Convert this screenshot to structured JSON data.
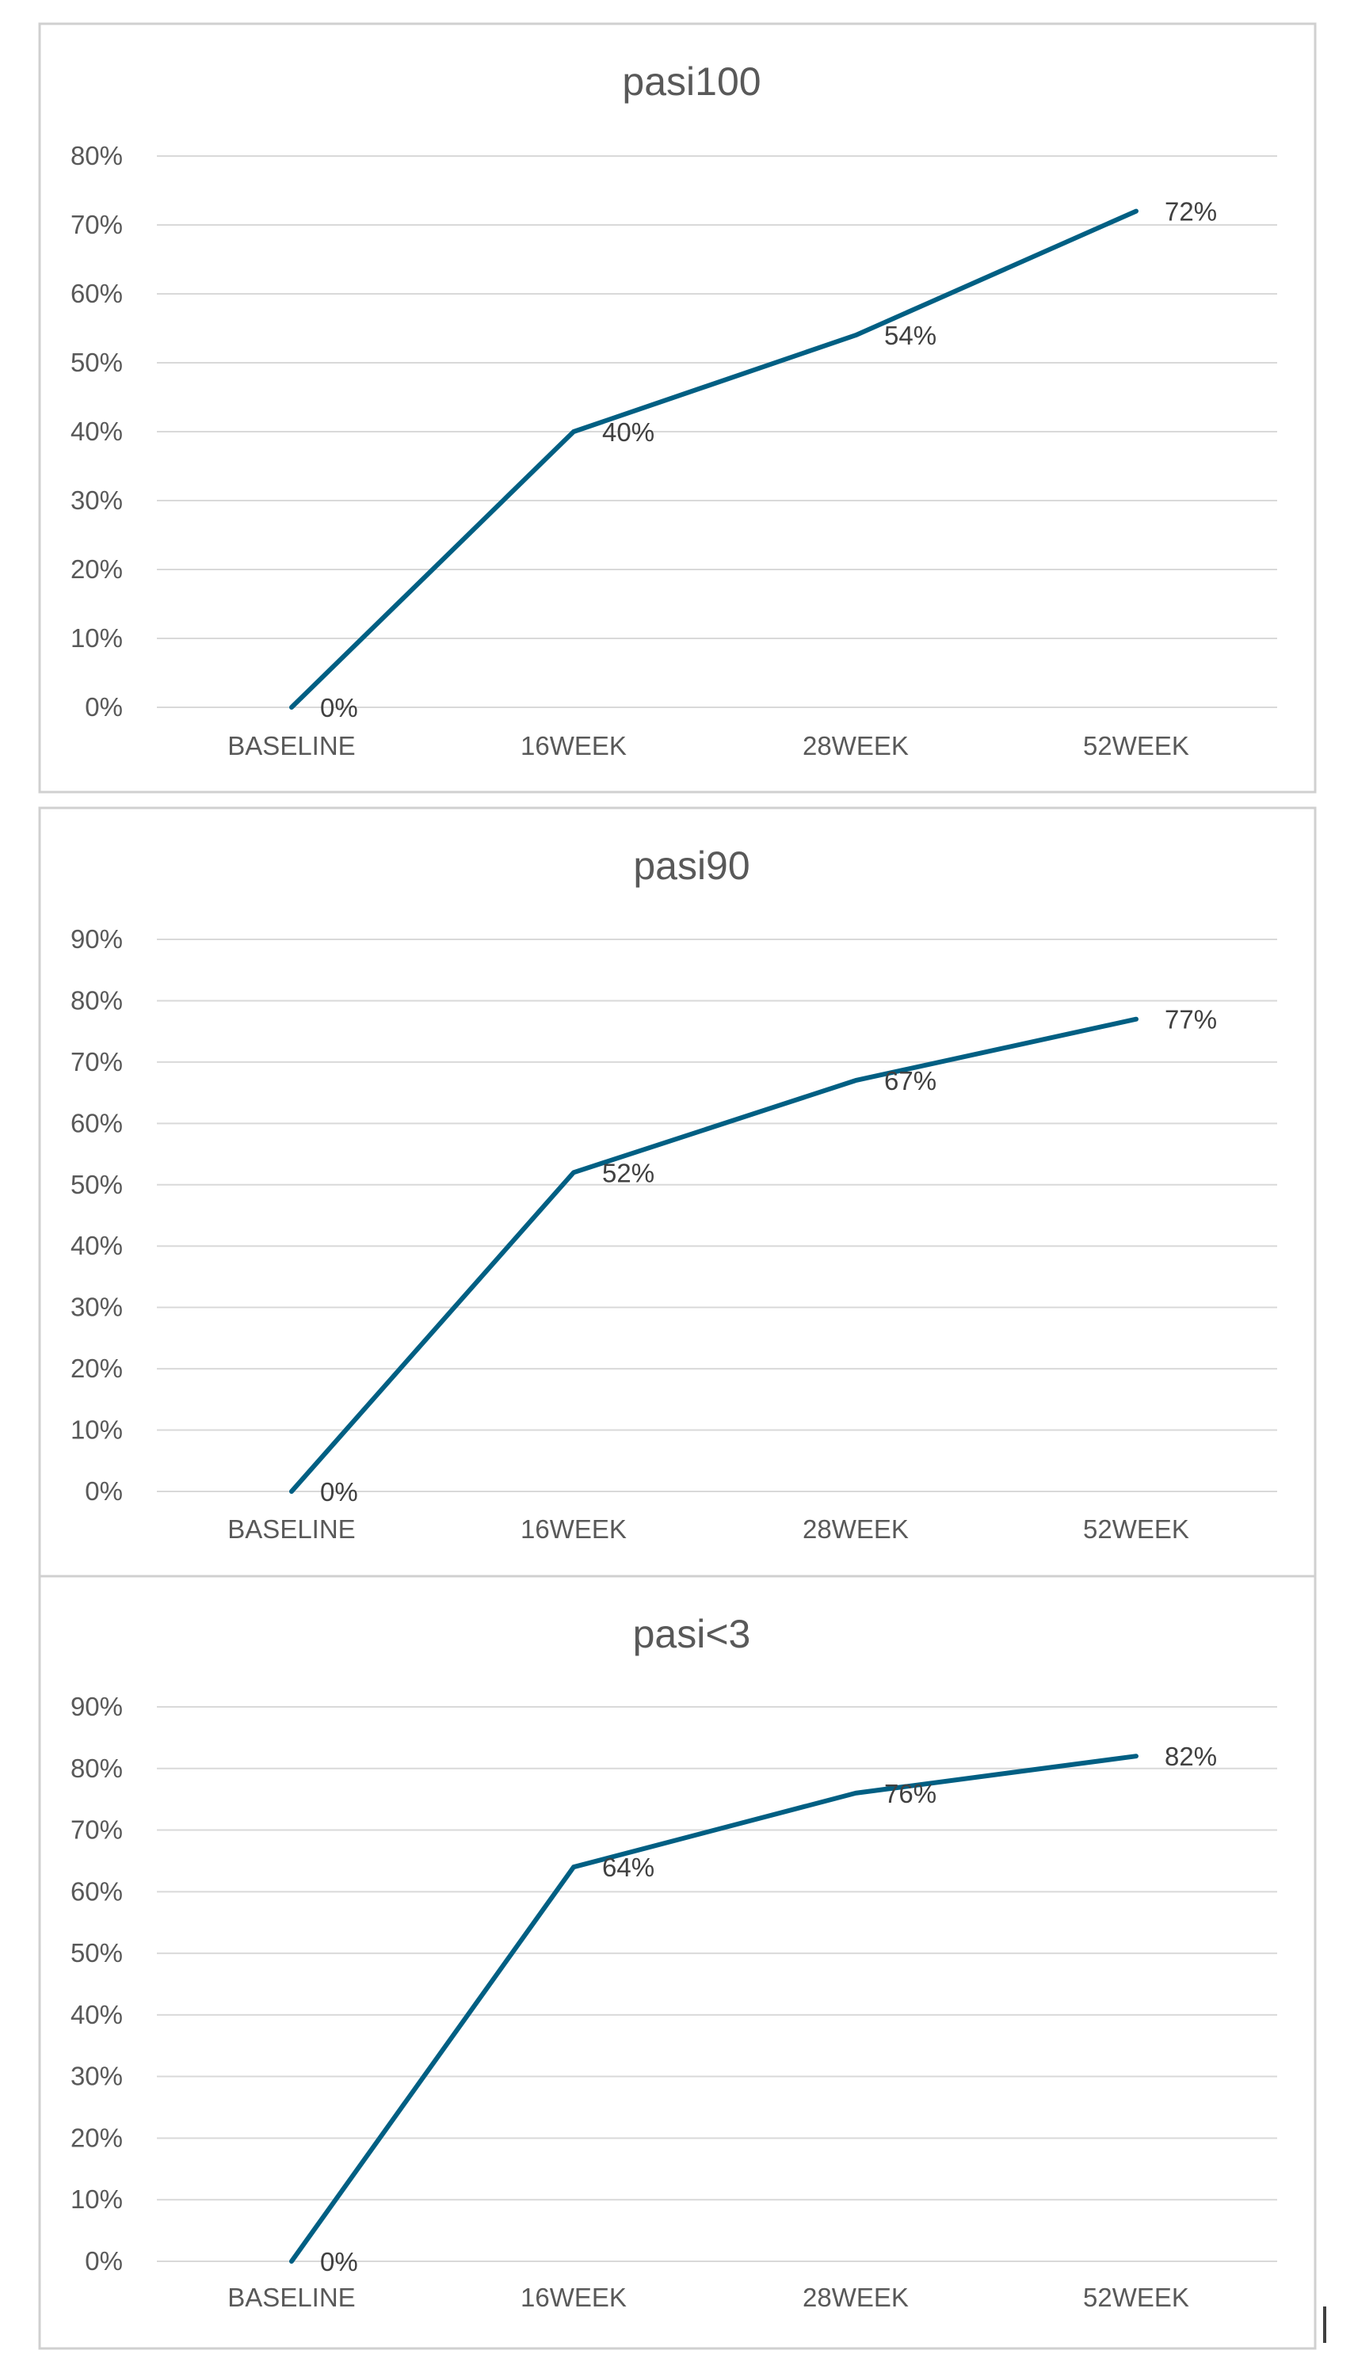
{
  "chart_data": [
    {
      "type": "line",
      "title": "pasi100",
      "categories": [
        "BASELINE",
        "16WEEK",
        "28WEEK",
        "52WEEK"
      ],
      "values": [
        0,
        40,
        54,
        72
      ],
      "data_labels": [
        "0%",
        "40%",
        "54%",
        "72%"
      ],
      "ylim": [
        0,
        80
      ],
      "y_ticks": [
        0,
        10,
        20,
        30,
        40,
        50,
        60,
        70,
        80
      ],
      "y_tick_labels": [
        "0%",
        "10%",
        "20%",
        "30%",
        "40%",
        "50%",
        "60%",
        "70%",
        "80%"
      ],
      "grid": true,
      "legend": "none",
      "line_color": "#005f83"
    },
    {
      "type": "line",
      "title": "pasi90",
      "categories": [
        "BASELINE",
        "16WEEK",
        "28WEEK",
        "52WEEK"
      ],
      "values": [
        0,
        52,
        67,
        77
      ],
      "data_labels": [
        "0%",
        "52%",
        "67%",
        "77%"
      ],
      "ylim": [
        0,
        90
      ],
      "y_ticks": [
        0,
        10,
        20,
        30,
        40,
        50,
        60,
        70,
        80,
        90
      ],
      "y_tick_labels": [
        "0%",
        "10%",
        "20%",
        "30%",
        "40%",
        "50%",
        "60%",
        "70%",
        "80%",
        "90%"
      ],
      "grid": true,
      "legend": "none",
      "line_color": "#005f83"
    },
    {
      "type": "line",
      "title": "pasi<3",
      "categories": [
        "BASELINE",
        "16WEEK",
        "28WEEK",
        "52WEEK"
      ],
      "values": [
        0,
        64,
        76,
        82
      ],
      "data_labels": [
        "0%",
        "64%",
        "76%",
        "82%"
      ],
      "ylim": [
        0,
        90
      ],
      "y_ticks": [
        0,
        10,
        20,
        30,
        40,
        50,
        60,
        70,
        80,
        90
      ],
      "y_tick_labels": [
        "0%",
        "10%",
        "20%",
        "30%",
        "40%",
        "50%",
        "60%",
        "70%",
        "80%",
        "90%"
      ],
      "grid": true,
      "legend": "none",
      "line_color": "#005f83"
    }
  ]
}
